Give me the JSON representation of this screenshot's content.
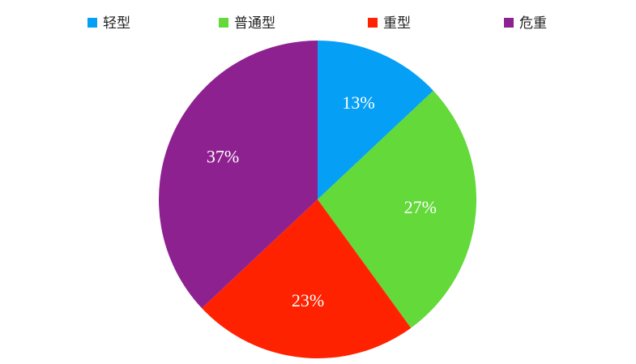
{
  "chart_data": {
    "type": "pie",
    "categories": [
      "轻型",
      "普通型",
      "重型",
      "危重"
    ],
    "values": [
      13,
      27,
      23,
      37
    ],
    "value_labels": [
      "13%",
      "27%",
      "23%",
      "37%"
    ],
    "colors": [
      "#059ff5",
      "#63d93a",
      "#ff2200",
      "#8e2190"
    ],
    "legend": "top"
  }
}
